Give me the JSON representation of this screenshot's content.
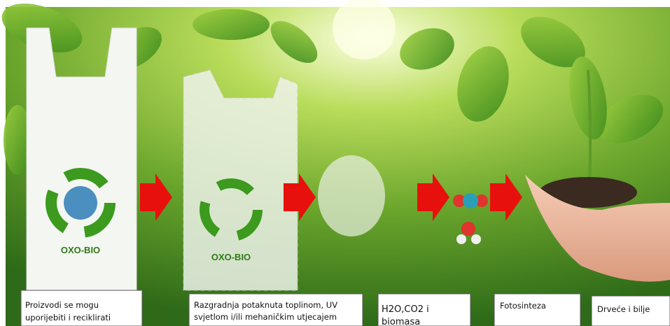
{
  "logos": [
    {
      "text": "OXO-BIO"
    },
    {
      "text": "OXO-BIO"
    }
  ],
  "steps": [
    {
      "lines": [
        "Proizvodi se mogu",
        "uporijebiti i reciklirati"
      ]
    },
    {
      "lines": [
        "Razgradnja potaknuta toplinom, UV",
        "svjetlom i/ili mehaničkim utjecajem"
      ]
    },
    {
      "lines": [
        "H2O,CO2 i",
        "biomasa"
      ]
    },
    {
      "lines": [
        "Fotosinteza"
      ]
    },
    {
      "lines": [
        "Drveće i bilje"
      ]
    }
  ]
}
